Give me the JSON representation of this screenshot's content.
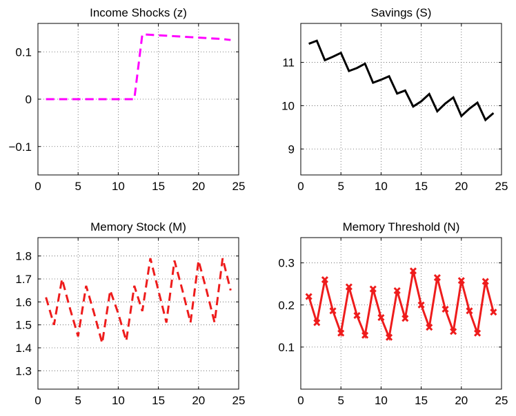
{
  "chart_data": [
    {
      "type": "line",
      "title": "Income Shocks (z)",
      "xlim": [
        0,
        25
      ],
      "ylim": [
        -0.16,
        0.16
      ],
      "xticks": [
        0,
        5,
        10,
        15,
        20,
        25
      ],
      "yticks": [
        -0.1,
        0,
        0.1
      ],
      "yticklabels": [
        "−0.1",
        "0",
        "0.1"
      ],
      "grid": true,
      "series": [
        {
          "color": "#ff00ff",
          "line_style": "dashed",
          "marker": "none",
          "x": [
            1,
            2,
            3,
            4,
            5,
            6,
            7,
            8,
            9,
            10,
            11,
            12,
            13,
            14,
            15,
            16,
            17,
            18,
            19,
            20,
            21,
            22,
            23,
            24
          ],
          "y": [
            0,
            0,
            0,
            0,
            0,
            0,
            0,
            0,
            0,
            0,
            0,
            0,
            0.137,
            0.136,
            0.135,
            0.134,
            0.133,
            0.132,
            0.131,
            0.13,
            0.129,
            0.128,
            0.127,
            0.125
          ]
        }
      ]
    },
    {
      "type": "line",
      "title": "Savings (S)",
      "xlim": [
        0,
        25
      ],
      "ylim": [
        8.4,
        11.9
      ],
      "xticks": [
        0,
        5,
        10,
        15,
        20,
        25
      ],
      "yticks": [
        9,
        10,
        11
      ],
      "yticklabels": [
        "9",
        "10",
        "11"
      ],
      "grid": true,
      "series": [
        {
          "color": "#000000",
          "line_style": "solid",
          "marker": "none",
          "x": [
            1,
            2,
            3,
            4,
            5,
            6,
            7,
            8,
            9,
            10,
            11,
            12,
            13,
            14,
            15,
            16,
            17,
            18,
            19,
            20,
            21,
            22,
            23,
            24
          ],
          "y": [
            11.43,
            11.5,
            11.05,
            11.13,
            11.22,
            10.8,
            10.87,
            10.97,
            10.53,
            10.6,
            10.68,
            10.28,
            10.35,
            9.98,
            10.1,
            10.27,
            9.87,
            10.05,
            10.19,
            9.76,
            9.93,
            10.07,
            9.67,
            9.83
          ]
        }
      ]
    },
    {
      "type": "line",
      "title": "Memory Stock (M)",
      "xlim": [
        0,
        25
      ],
      "ylim": [
        1.22,
        1.88
      ],
      "xticks": [
        0,
        5,
        10,
        15,
        20,
        25
      ],
      "yticks": [
        1.3,
        1.4,
        1.5,
        1.6,
        1.7,
        1.8
      ],
      "yticklabels": [
        "1.3",
        "1.4",
        "1.5",
        "1.6",
        "1.7",
        "1.8"
      ],
      "grid": true,
      "series": [
        {
          "color": "#ee1c1c",
          "line_style": "dashed",
          "marker": "none",
          "x": [
            1,
            2,
            3,
            4,
            5,
            6,
            7,
            8,
            9,
            10,
            11,
            12,
            13,
            14,
            15,
            16,
            17,
            18,
            19,
            20,
            21,
            22,
            23,
            24
          ],
          "y": [
            1.62,
            1.5,
            1.7,
            1.57,
            1.45,
            1.67,
            1.55,
            1.42,
            1.65,
            1.55,
            1.43,
            1.67,
            1.56,
            1.79,
            1.65,
            1.51,
            1.78,
            1.65,
            1.51,
            1.78,
            1.65,
            1.51,
            1.79,
            1.65
          ]
        }
      ]
    },
    {
      "type": "line",
      "title": "Memory Threshold (N)",
      "xlim": [
        0,
        25
      ],
      "ylim": [
        0,
        0.36
      ],
      "xticks": [
        0,
        5,
        10,
        15,
        20,
        25
      ],
      "yticks": [
        0.1,
        0.2,
        0.3
      ],
      "yticklabels": [
        "0.1",
        "0.2",
        "0.3"
      ],
      "grid": true,
      "series": [
        {
          "color": "#ee1c1c",
          "line_style": "solid",
          "marker": "x",
          "x": [
            1,
            2,
            3,
            4,
            5,
            6,
            7,
            8,
            9,
            10,
            11,
            12,
            13,
            14,
            15,
            16,
            17,
            18,
            19,
            20,
            21,
            22,
            23,
            24
          ],
          "y": [
            0.22,
            0.158,
            0.26,
            0.186,
            0.133,
            0.243,
            0.175,
            0.128,
            0.238,
            0.17,
            0.123,
            0.234,
            0.168,
            0.281,
            0.2,
            0.147,
            0.265,
            0.19,
            0.137,
            0.258,
            0.186,
            0.133,
            0.256,
            0.183
          ]
        }
      ]
    }
  ]
}
